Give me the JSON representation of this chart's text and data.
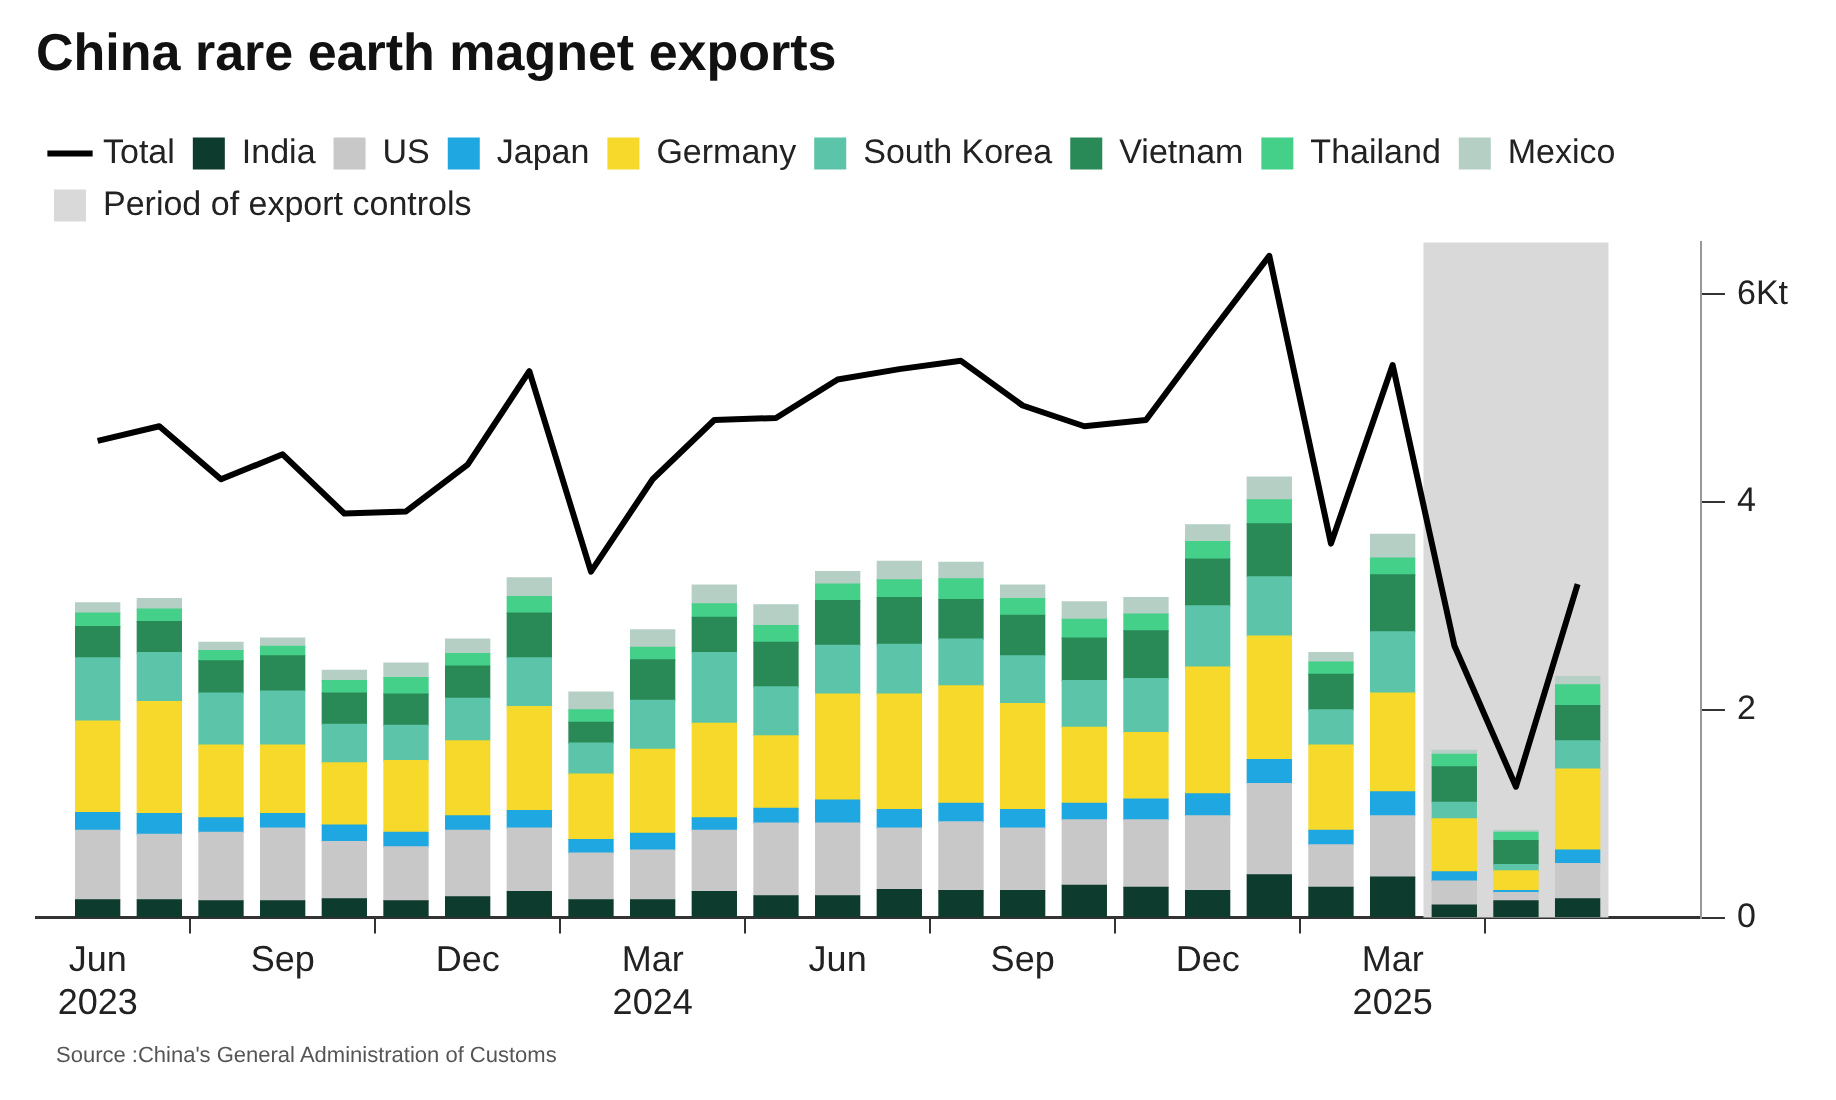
{
  "chart_data": {
    "type": "bar",
    "stacked": true,
    "title": "China rare earth magnet exports",
    "x": [
      "2023-06",
      "2023-07",
      "2023-08",
      "2023-09",
      "2023-10",
      "2023-11",
      "2023-12",
      "2024-01",
      "2024-02",
      "2024-03",
      "2024-04",
      "2024-05",
      "2024-06",
      "2024-07",
      "2024-08",
      "2024-09",
      "2024-10",
      "2024-11",
      "2024-12",
      "2025-01",
      "2025-02",
      "2025-03",
      "2025-04",
      "2025-05",
      "2025-06"
    ],
    "xlim": [
      "2023-05",
      "2025-08"
    ],
    "xticks": [
      {
        "value": "2023-06",
        "label": "Jun\n2023"
      },
      {
        "value": "2023-09",
        "label": "Sep"
      },
      {
        "value": "2023-12",
        "label": "Dec"
      },
      {
        "value": "2024-03",
        "label": "Mar\n2024"
      },
      {
        "value": "2024-06",
        "label": "Jun"
      },
      {
        "value": "2024-09",
        "label": "Sep"
      },
      {
        "value": "2024-12",
        "label": "Dec"
      },
      {
        "value": "2025-03",
        "label": "Mar\n2025"
      }
    ],
    "ylim": [
      0,
      6.5
    ],
    "yticks": [
      0,
      2,
      4,
      {
        "value": 6,
        "label": "6Kt"
      }
    ],
    "legend": "top left",
    "series": [
      {
        "name": "Total",
        "type": "line",
        "color": "#000000",
        "marker": "none",
        "values": [
          4.59,
          4.73,
          4.22,
          4.46,
          3.89,
          3.91,
          4.36,
          5.26,
          3.33,
          4.22,
          4.79,
          4.81,
          5.18,
          5.28,
          5.36,
          4.93,
          4.73,
          4.79,
          5.59,
          6.37,
          3.6,
          5.32,
          2.62,
          1.26,
          3.21
        ]
      },
      {
        "name": "India",
        "color": "#0d3b2e",
        "values": [
          0.17,
          0.17,
          0.16,
          0.16,
          0.18,
          0.16,
          0.2,
          0.25,
          0.17,
          0.17,
          0.25,
          0.21,
          0.21,
          0.27,
          0.26,
          0.26,
          0.31,
          0.29,
          0.26,
          0.41,
          0.29,
          0.39,
          0.12,
          0.16,
          0.18
        ]
      },
      {
        "name": "US",
        "color": "#c8c8c8",
        "values": [
          0.67,
          0.63,
          0.66,
          0.7,
          0.55,
          0.52,
          0.64,
          0.61,
          0.45,
          0.48,
          0.59,
          0.7,
          0.7,
          0.59,
          0.66,
          0.6,
          0.63,
          0.65,
          0.72,
          0.88,
          0.41,
          0.59,
          0.23,
          0.08,
          0.34
        ]
      },
      {
        "name": "Japan",
        "color": "#1ea7e0",
        "values": [
          0.17,
          0.2,
          0.14,
          0.14,
          0.16,
          0.14,
          0.14,
          0.17,
          0.13,
          0.16,
          0.12,
          0.14,
          0.22,
          0.18,
          0.18,
          0.18,
          0.16,
          0.2,
          0.21,
          0.23,
          0.14,
          0.23,
          0.09,
          0.02,
          0.13
        ]
      },
      {
        "name": "Germany",
        "color": "#f6d92b",
        "values": [
          0.88,
          1.08,
          0.7,
          0.66,
          0.6,
          0.69,
          0.72,
          1.0,
          0.63,
          0.81,
          0.91,
          0.7,
          1.02,
          1.11,
          1.13,
          1.02,
          0.73,
          0.64,
          1.22,
          1.19,
          0.82,
          0.95,
          0.51,
          0.19,
          0.78
        ]
      },
      {
        "name": "South Korea",
        "color": "#5cc4a8",
        "values": [
          0.61,
          0.47,
          0.5,
          0.52,
          0.37,
          0.34,
          0.41,
          0.47,
          0.3,
          0.47,
          0.68,
          0.47,
          0.47,
          0.48,
          0.45,
          0.46,
          0.45,
          0.52,
          0.59,
          0.57,
          0.34,
          0.59,
          0.16,
          0.06,
          0.27
        ]
      },
      {
        "name": "Vietnam",
        "color": "#2a8a57",
        "values": [
          0.3,
          0.3,
          0.31,
          0.34,
          0.3,
          0.3,
          0.31,
          0.43,
          0.2,
          0.39,
          0.34,
          0.43,
          0.43,
          0.45,
          0.38,
          0.39,
          0.41,
          0.46,
          0.45,
          0.51,
          0.34,
          0.55,
          0.34,
          0.23,
          0.34
        ]
      },
      {
        "name": "Thailand",
        "color": "#45d08a",
        "values": [
          0.13,
          0.12,
          0.1,
          0.09,
          0.12,
          0.16,
          0.12,
          0.16,
          0.12,
          0.12,
          0.13,
          0.16,
          0.16,
          0.17,
          0.2,
          0.16,
          0.18,
          0.16,
          0.17,
          0.23,
          0.12,
          0.16,
          0.12,
          0.08,
          0.2
        ]
      },
      {
        "name": "Mexico",
        "color": "#b5cfc5",
        "values": [
          0.1,
          0.1,
          0.08,
          0.08,
          0.1,
          0.14,
          0.14,
          0.18,
          0.17,
          0.17,
          0.18,
          0.2,
          0.12,
          0.18,
          0.16,
          0.13,
          0.17,
          0.16,
          0.16,
          0.22,
          0.09,
          0.23,
          0.04,
          0.02,
          0.08
        ]
      }
    ],
    "bands": [
      {
        "axis": "x",
        "from": "2025-03-16",
        "to": "2025-06-16",
        "label": "Period of export controls",
        "color": "#d9d9d9"
      }
    ],
    "annotations": [
      "Source :China's General Administration of Customs"
    ]
  }
}
